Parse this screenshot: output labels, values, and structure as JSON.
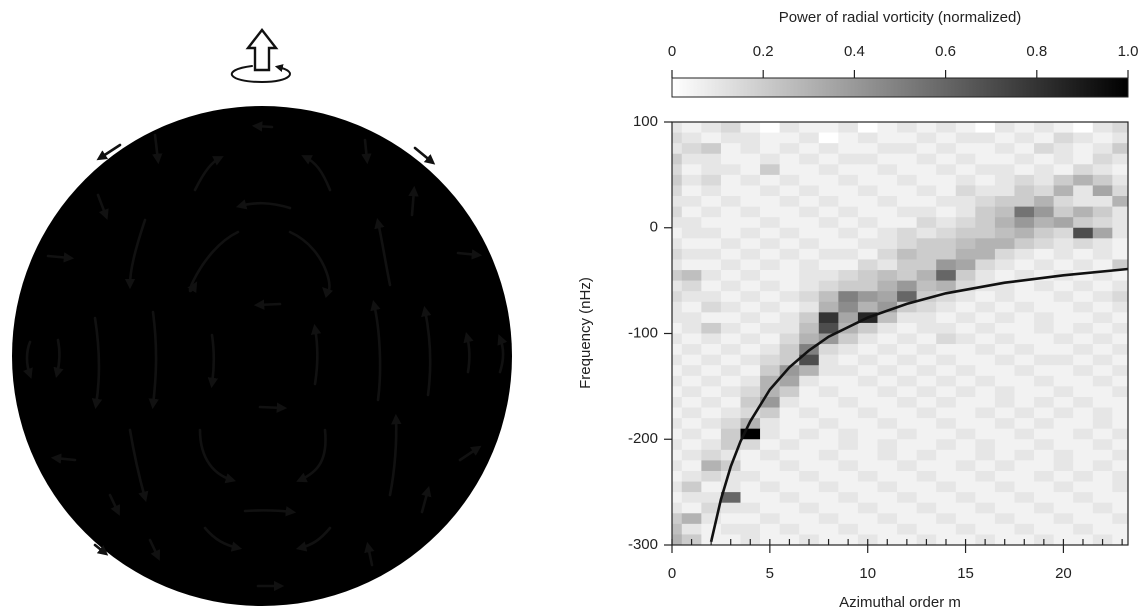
{
  "chart_data": {
    "type": "heatmap",
    "colorbar": {
      "label": "Power of radial vorticity (normalized)",
      "lim": [
        0,
        1
      ],
      "ticks": [
        0,
        0.2,
        0.4,
        0.6,
        0.8,
        {
          "value": 1,
          "label": "1.0"
        }
      ]
    },
    "xlabel": "Azimuthal order m",
    "ylabel": "Frequency (nHz)",
    "xlim": [
      0,
      23.3
    ],
    "ylim": [
      -300,
      100
    ],
    "xticks": [
      0,
      5,
      10,
      15,
      20
    ],
    "yticks": [
      -300,
      -200,
      -100,
      0,
      100
    ],
    "xminorticks": [
      0,
      1,
      2,
      3,
      4,
      5,
      6,
      7,
      8,
      9,
      10,
      11,
      12,
      13,
      14,
      15,
      16,
      17,
      18,
      19,
      20,
      21,
      22,
      23
    ],
    "z": [
      [
        0.1,
        0.05,
        0.1,
        0.15,
        0.05,
        0,
        0.1,
        0.05,
        0.05,
        0.1,
        0,
        0.05,
        0.1,
        0.05,
        0.1,
        0.05,
        0,
        0.1,
        0.05,
        0.1,
        0.05,
        0,
        0.1,
        0.15
      ],
      [
        0.15,
        0.1,
        0.05,
        0.1,
        0.1,
        0.05,
        0.05,
        0.1,
        0,
        0.05,
        0.1,
        0.05,
        0.05,
        0.1,
        0.05,
        0.1,
        0.1,
        0.05,
        0.1,
        0.05,
        0.15,
        0.1,
        0.05,
        0.1
      ],
      [
        0.1,
        0.15,
        0.2,
        0.05,
        0.1,
        0.05,
        0.1,
        0.05,
        0.1,
        0.05,
        0.05,
        0.1,
        0.1,
        0.05,
        0.1,
        0.05,
        0.05,
        0.1,
        0.05,
        0.15,
        0.1,
        0.05,
        0.1,
        0.2
      ],
      [
        0.2,
        0.1,
        0.1,
        0.05,
        0.05,
        0.1,
        0.05,
        0.1,
        0.05,
        0.1,
        0.1,
        0.05,
        0.05,
        0.1,
        0.05,
        0.1,
        0.05,
        0.05,
        0.1,
        0.05,
        0.1,
        0.05,
        0.15,
        0.1
      ],
      [
        0.15,
        0.05,
        0.1,
        0.1,
        0.05,
        0.2,
        0.05,
        0.05,
        0.1,
        0.05,
        0.05,
        0.1,
        0.05,
        0.05,
        0.1,
        0.05,
        0.1,
        0.1,
        0.05,
        0.1,
        0.05,
        0.15,
        0.1,
        0.05
      ],
      [
        0.2,
        0.1,
        0.15,
        0.05,
        0.1,
        0.05,
        0.1,
        0.05,
        0.05,
        0.1,
        0.05,
        0.05,
        0.1,
        0.05,
        0.05,
        0.1,
        0.05,
        0.1,
        0.15,
        0.1,
        0.2,
        0.3,
        0.2,
        0.1
      ],
      [
        0.15,
        0.05,
        0.1,
        0.05,
        0.05,
        0.1,
        0.05,
        0.1,
        0.05,
        0.05,
        0.1,
        0.05,
        0.05,
        0.1,
        0.05,
        0.15,
        0.1,
        0.1,
        0.2,
        0.15,
        0.3,
        0.1,
        0.35,
        0.15
      ],
      [
        0.1,
        0.1,
        0.05,
        0.1,
        0.05,
        0.05,
        0.1,
        0.05,
        0.1,
        0.05,
        0.05,
        0.1,
        0.05,
        0.05,
        0.1,
        0.1,
        0.15,
        0.2,
        0.2,
        0.3,
        0.15,
        0.1,
        0.1,
        0.3
      ],
      [
        0.15,
        0.05,
        0.1,
        0.05,
        0.1,
        0.05,
        0.05,
        0.1,
        0.05,
        0.1,
        0.05,
        0.05,
        0.1,
        0.1,
        0.05,
        0.1,
        0.2,
        0.25,
        0.55,
        0.4,
        0.2,
        0.3,
        0.2,
        0.1
      ],
      [
        0.1,
        0.1,
        0.05,
        0.05,
        0.05,
        0.1,
        0.05,
        0.05,
        0.1,
        0.05,
        0.1,
        0.05,
        0.05,
        0.15,
        0.1,
        0.15,
        0.2,
        0.3,
        0.4,
        0.3,
        0.35,
        0.2,
        0.15,
        0.1
      ],
      [
        0.05,
        0.1,
        0.1,
        0.05,
        0.1,
        0.05,
        0.1,
        0.05,
        0.05,
        0.1,
        0.05,
        0.1,
        0.15,
        0.1,
        0.15,
        0.2,
        0.2,
        0.25,
        0.3,
        0.2,
        0.15,
        0.7,
        0.35,
        0.1
      ],
      [
        0.1,
        0.05,
        0.05,
        0.1,
        0.05,
        0.1,
        0.05,
        0.1,
        0.05,
        0.05,
        0.1,
        0.1,
        0.15,
        0.2,
        0.2,
        0.25,
        0.3,
        0.3,
        0.2,
        0.15,
        0.1,
        0.15,
        0.1,
        0.05
      ],
      [
        0.15,
        0.1,
        0.1,
        0.05,
        0.1,
        0.05,
        0.1,
        0.05,
        0.1,
        0.1,
        0.05,
        0.15,
        0.25,
        0.2,
        0.2,
        0.3,
        0.3,
        0.15,
        0.1,
        0.05,
        0.1,
        0.05,
        0.1,
        0.05
      ],
      [
        0.1,
        0.05,
        0.05,
        0.1,
        0.05,
        0.1,
        0.05,
        0.1,
        0.05,
        0.05,
        0.15,
        0.1,
        0.2,
        0.2,
        0.4,
        0.35,
        0.15,
        0.1,
        0.05,
        0.1,
        0.05,
        0.1,
        0.05,
        0.2
      ],
      [
        0.2,
        0.25,
        0.1,
        0.05,
        0.1,
        0.05,
        0.05,
        0.1,
        0.1,
        0.15,
        0.2,
        0.25,
        0.2,
        0.3,
        0.6,
        0.2,
        0.1,
        0.05,
        0.1,
        0.05,
        0.1,
        0.05,
        0.1,
        0.05
      ],
      [
        0.1,
        0.15,
        0.05,
        0.1,
        0.05,
        0.1,
        0.05,
        0.1,
        0.15,
        0.2,
        0.2,
        0.3,
        0.4,
        0.25,
        0.3,
        0.15,
        0.1,
        0.1,
        0.05,
        0.1,
        0.05,
        0.1,
        0.05,
        0.1
      ],
      [
        0.15,
        0.1,
        0.1,
        0.05,
        0.1,
        0.05,
        0.1,
        0.15,
        0.25,
        0.5,
        0.4,
        0.35,
        0.6,
        0.2,
        0.15,
        0.1,
        0.05,
        0.1,
        0.05,
        0.05,
        0.1,
        0.05,
        0.1,
        0.15
      ],
      [
        0.1,
        0.05,
        0.15,
        0.1,
        0.05,
        0.1,
        0.05,
        0.1,
        0.3,
        0.45,
        0.3,
        0.4,
        0.2,
        0.15,
        0.1,
        0.05,
        0.1,
        0.05,
        0.1,
        0.05,
        0.05,
        0.1,
        0.05,
        0.1
      ],
      [
        0.1,
        0.1,
        0.05,
        0.05,
        0.1,
        0.05,
        0.1,
        0.2,
        0.8,
        0.35,
        0.85,
        0.25,
        0.1,
        0.1,
        0.05,
        0.1,
        0.05,
        0.1,
        0.05,
        0.1,
        0.05,
        0.05,
        0.1,
        0.05
      ],
      [
        0.05,
        0.1,
        0.2,
        0.1,
        0.05,
        0.1,
        0.1,
        0.25,
        0.7,
        0.3,
        0.2,
        0.1,
        0.05,
        0.1,
        0.1,
        0.05,
        0.1,
        0.05,
        0.05,
        0.1,
        0.05,
        0.1,
        0.05,
        0.1
      ],
      [
        0.1,
        0.05,
        0.1,
        0.05,
        0.1,
        0.05,
        0.15,
        0.3,
        0.4,
        0.2,
        0.1,
        0.05,
        0.1,
        0.05,
        0.15,
        0.1,
        0.05,
        0.1,
        0.05,
        0.05,
        0.1,
        0.05,
        0.1,
        0.05
      ],
      [
        0.05,
        0.1,
        0.05,
        0.1,
        0.05,
        0.1,
        0.2,
        0.5,
        0.15,
        0.1,
        0.05,
        0.1,
        0.05,
        0.1,
        0.05,
        0.05,
        0.1,
        0.05,
        0.1,
        0.05,
        0.05,
        0.1,
        0.05,
        0.1
      ],
      [
        0.1,
        0.05,
        0.1,
        0.05,
        0.1,
        0.15,
        0.2,
        0.7,
        0.1,
        0.05,
        0.1,
        0.05,
        0.1,
        0.05,
        0.1,
        0.05,
        0.05,
        0.1,
        0.05,
        0.1,
        0.1,
        0.05,
        0.1,
        0.05
      ],
      [
        0.05,
        0.1,
        0.05,
        0.1,
        0.05,
        0.2,
        0.4,
        0.3,
        0.1,
        0.1,
        0.05,
        0.1,
        0.05,
        0.1,
        0.05,
        0.1,
        0.05,
        0.05,
        0.1,
        0.05,
        0.05,
        0.1,
        0.05,
        0.1
      ],
      [
        0.1,
        0.05,
        0.1,
        0.05,
        0.1,
        0.3,
        0.35,
        0.1,
        0.05,
        0.05,
        0.1,
        0.05,
        0.1,
        0.05,
        0.1,
        0.05,
        0.1,
        0.05,
        0.05,
        0.1,
        0.05,
        0.05,
        0.1,
        0.05
      ],
      [
        0.05,
        0.1,
        0.05,
        0.1,
        0.15,
        0.3,
        0.2,
        0.05,
        0.1,
        0.05,
        0.05,
        0.1,
        0.05,
        0.1,
        0.05,
        0.1,
        0.05,
        0.1,
        0.05,
        0.05,
        0.1,
        0.05,
        0.05,
        0.1
      ],
      [
        0.1,
        0.05,
        0.1,
        0.05,
        0.2,
        0.4,
        0.1,
        0.05,
        0.05,
        0.1,
        0.05,
        0.05,
        0.1,
        0.05,
        0.1,
        0.05,
        0.05,
        0.1,
        0.05,
        0.1,
        0.05,
        0.1,
        0.05,
        0.05
      ],
      [
        0.05,
        0.1,
        0.05,
        0.1,
        0.15,
        0.2,
        0.05,
        0.1,
        0.05,
        0.05,
        0.1,
        0.05,
        0.05,
        0.1,
        0.05,
        0.05,
        0.1,
        0.05,
        0.1,
        0.05,
        0.1,
        0.05,
        0.1,
        0.05
      ],
      [
        0.1,
        0.05,
        0.1,
        0.15,
        0.3,
        0.1,
        0.05,
        0.05,
        0.1,
        0.05,
        0.05,
        0.1,
        0.05,
        0.05,
        0.1,
        0.05,
        0.05,
        0.1,
        0.05,
        0.1,
        0.05,
        0.05,
        0.1,
        0.05
      ],
      [
        0.05,
        0.1,
        0.05,
        0.2,
        1.0,
        0.1,
        0.05,
        0.1,
        0.05,
        0.1,
        0.05,
        0.05,
        0.1,
        0.05,
        0.05,
        0.1,
        0.05,
        0.05,
        0.1,
        0.05,
        0.05,
        0.1,
        0.05,
        0.1
      ],
      [
        0.1,
        0.05,
        0.1,
        0.2,
        0.15,
        0.05,
        0.1,
        0.05,
        0.05,
        0.1,
        0.05,
        0.1,
        0.05,
        0.05,
        0.1,
        0.05,
        0.1,
        0.05,
        0.05,
        0.1,
        0.05,
        0.05,
        0.1,
        0.05
      ],
      [
        0.05,
        0.1,
        0.15,
        0.1,
        0.05,
        0.1,
        0.05,
        0.05,
        0.1,
        0.05,
        0.05,
        0.1,
        0.05,
        0.1,
        0.05,
        0.05,
        0.1,
        0.05,
        0.1,
        0.05,
        0.1,
        0.05,
        0.05,
        0.1
      ],
      [
        0.1,
        0.05,
        0.3,
        0.2,
        0.05,
        0.05,
        0.1,
        0.05,
        0.05,
        0.1,
        0.05,
        0.05,
        0.1,
        0.05,
        0.05,
        0.1,
        0.05,
        0.1,
        0.05,
        0.05,
        0.1,
        0.05,
        0.1,
        0.05
      ],
      [
        0.05,
        0.1,
        0.15,
        0.1,
        0.1,
        0.05,
        0.05,
        0.1,
        0.05,
        0.05,
        0.1,
        0.05,
        0.05,
        0.1,
        0.05,
        0.05,
        0.1,
        0.05,
        0.05,
        0.1,
        0.05,
        0.1,
        0.05,
        0.1
      ],
      [
        0.1,
        0.2,
        0.05,
        0.1,
        0.05,
        0.1,
        0.05,
        0.05,
        0.1,
        0.05,
        0.05,
        0.1,
        0.05,
        0.05,
        0.1,
        0.05,
        0.05,
        0.1,
        0.05,
        0.05,
        0.1,
        0.05,
        0.05,
        0.1
      ],
      [
        0.05,
        0.1,
        0.1,
        0.6,
        0.05,
        0.05,
        0.1,
        0.05,
        0.05,
        0.1,
        0.05,
        0.05,
        0.1,
        0.05,
        0.05,
        0.1,
        0.05,
        0.05,
        0.1,
        0.05,
        0.05,
        0.1,
        0.05,
        0.05
      ],
      [
        0.1,
        0.05,
        0.15,
        0.1,
        0.1,
        0.05,
        0.05,
        0.1,
        0.05,
        0.05,
        0.1,
        0.05,
        0.05,
        0.1,
        0.05,
        0.05,
        0.1,
        0.05,
        0.05,
        0.1,
        0.05,
        0.05,
        0.1,
        0.05
      ],
      [
        0.2,
        0.3,
        0.1,
        0.05,
        0.05,
        0.1,
        0.05,
        0.05,
        0.1,
        0.05,
        0.05,
        0.1,
        0.05,
        0.05,
        0.1,
        0.05,
        0.05,
        0.1,
        0.05,
        0.05,
        0.1,
        0.05,
        0.05,
        0.1
      ],
      [
        0.25,
        0.1,
        0.05,
        0.1,
        0.1,
        0.05,
        0.1,
        0.05,
        0.05,
        0.1,
        0.05,
        0.05,
        0.1,
        0.05,
        0.05,
        0.1,
        0.05,
        0.05,
        0.1,
        0.05,
        0.05,
        0.1,
        0.05,
        0.05
      ],
      [
        0.3,
        0.2,
        0.05,
        0.05,
        0.1,
        0.05,
        0.05,
        0.1,
        0.05,
        0.05,
        0.1,
        0.05,
        0.05,
        0.1,
        0.05,
        0.05,
        0.1,
        0.05,
        0.05,
        0.1,
        0.05,
        0.05,
        0.1,
        0.05
      ]
    ],
    "curve": {
      "color": "#111111",
      "x": [
        2.0,
        2.5,
        3,
        3.5,
        4,
        5,
        6,
        7,
        8,
        10,
        12,
        14,
        17,
        20,
        23.3
      ],
      "y": [
        -297,
        -257,
        -226,
        -202,
        -183,
        -153,
        -132,
        -116,
        -103,
        -85,
        -72,
        -62,
        -52,
        -45,
        -39
      ]
    }
  }
}
